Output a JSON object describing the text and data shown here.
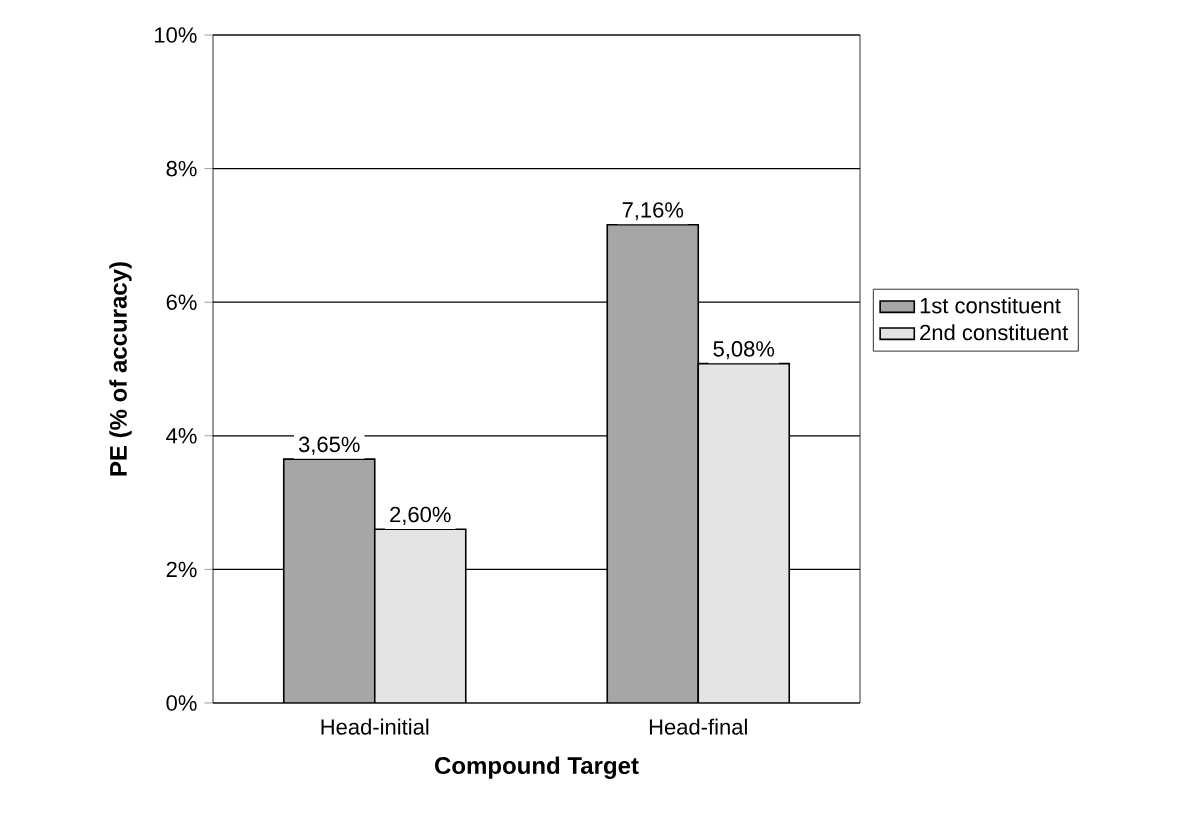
{
  "chart_data": {
    "type": "bar",
    "xlabel": "Compound Target",
    "ylabel": "PE (% of accuracy)",
    "categories": [
      "Head-initial",
      "Head-final"
    ],
    "series": [
      {
        "name": "1st constituent",
        "color": "#a6a6a6",
        "values": [
          3.65,
          7.16
        ],
        "value_labels": [
          "3,65%",
          "7,16%"
        ]
      },
      {
        "name": "2nd constituent",
        "color": "#e4e4e4",
        "values": [
          2.6,
          5.08
        ],
        "value_labels": [
          "2,60%",
          "5,08%"
        ]
      }
    ],
    "ylim": [
      0,
      10
    ],
    "yticks": [
      {
        "value": 0,
        "label": "0%"
      },
      {
        "value": 2,
        "label": "2%"
      },
      {
        "value": 4,
        "label": "4%"
      },
      {
        "value": 6,
        "label": "6%"
      },
      {
        "value": 8,
        "label": "8%"
      },
      {
        "value": 10,
        "label": "10%"
      }
    ],
    "grid": "y",
    "legend": "right"
  }
}
